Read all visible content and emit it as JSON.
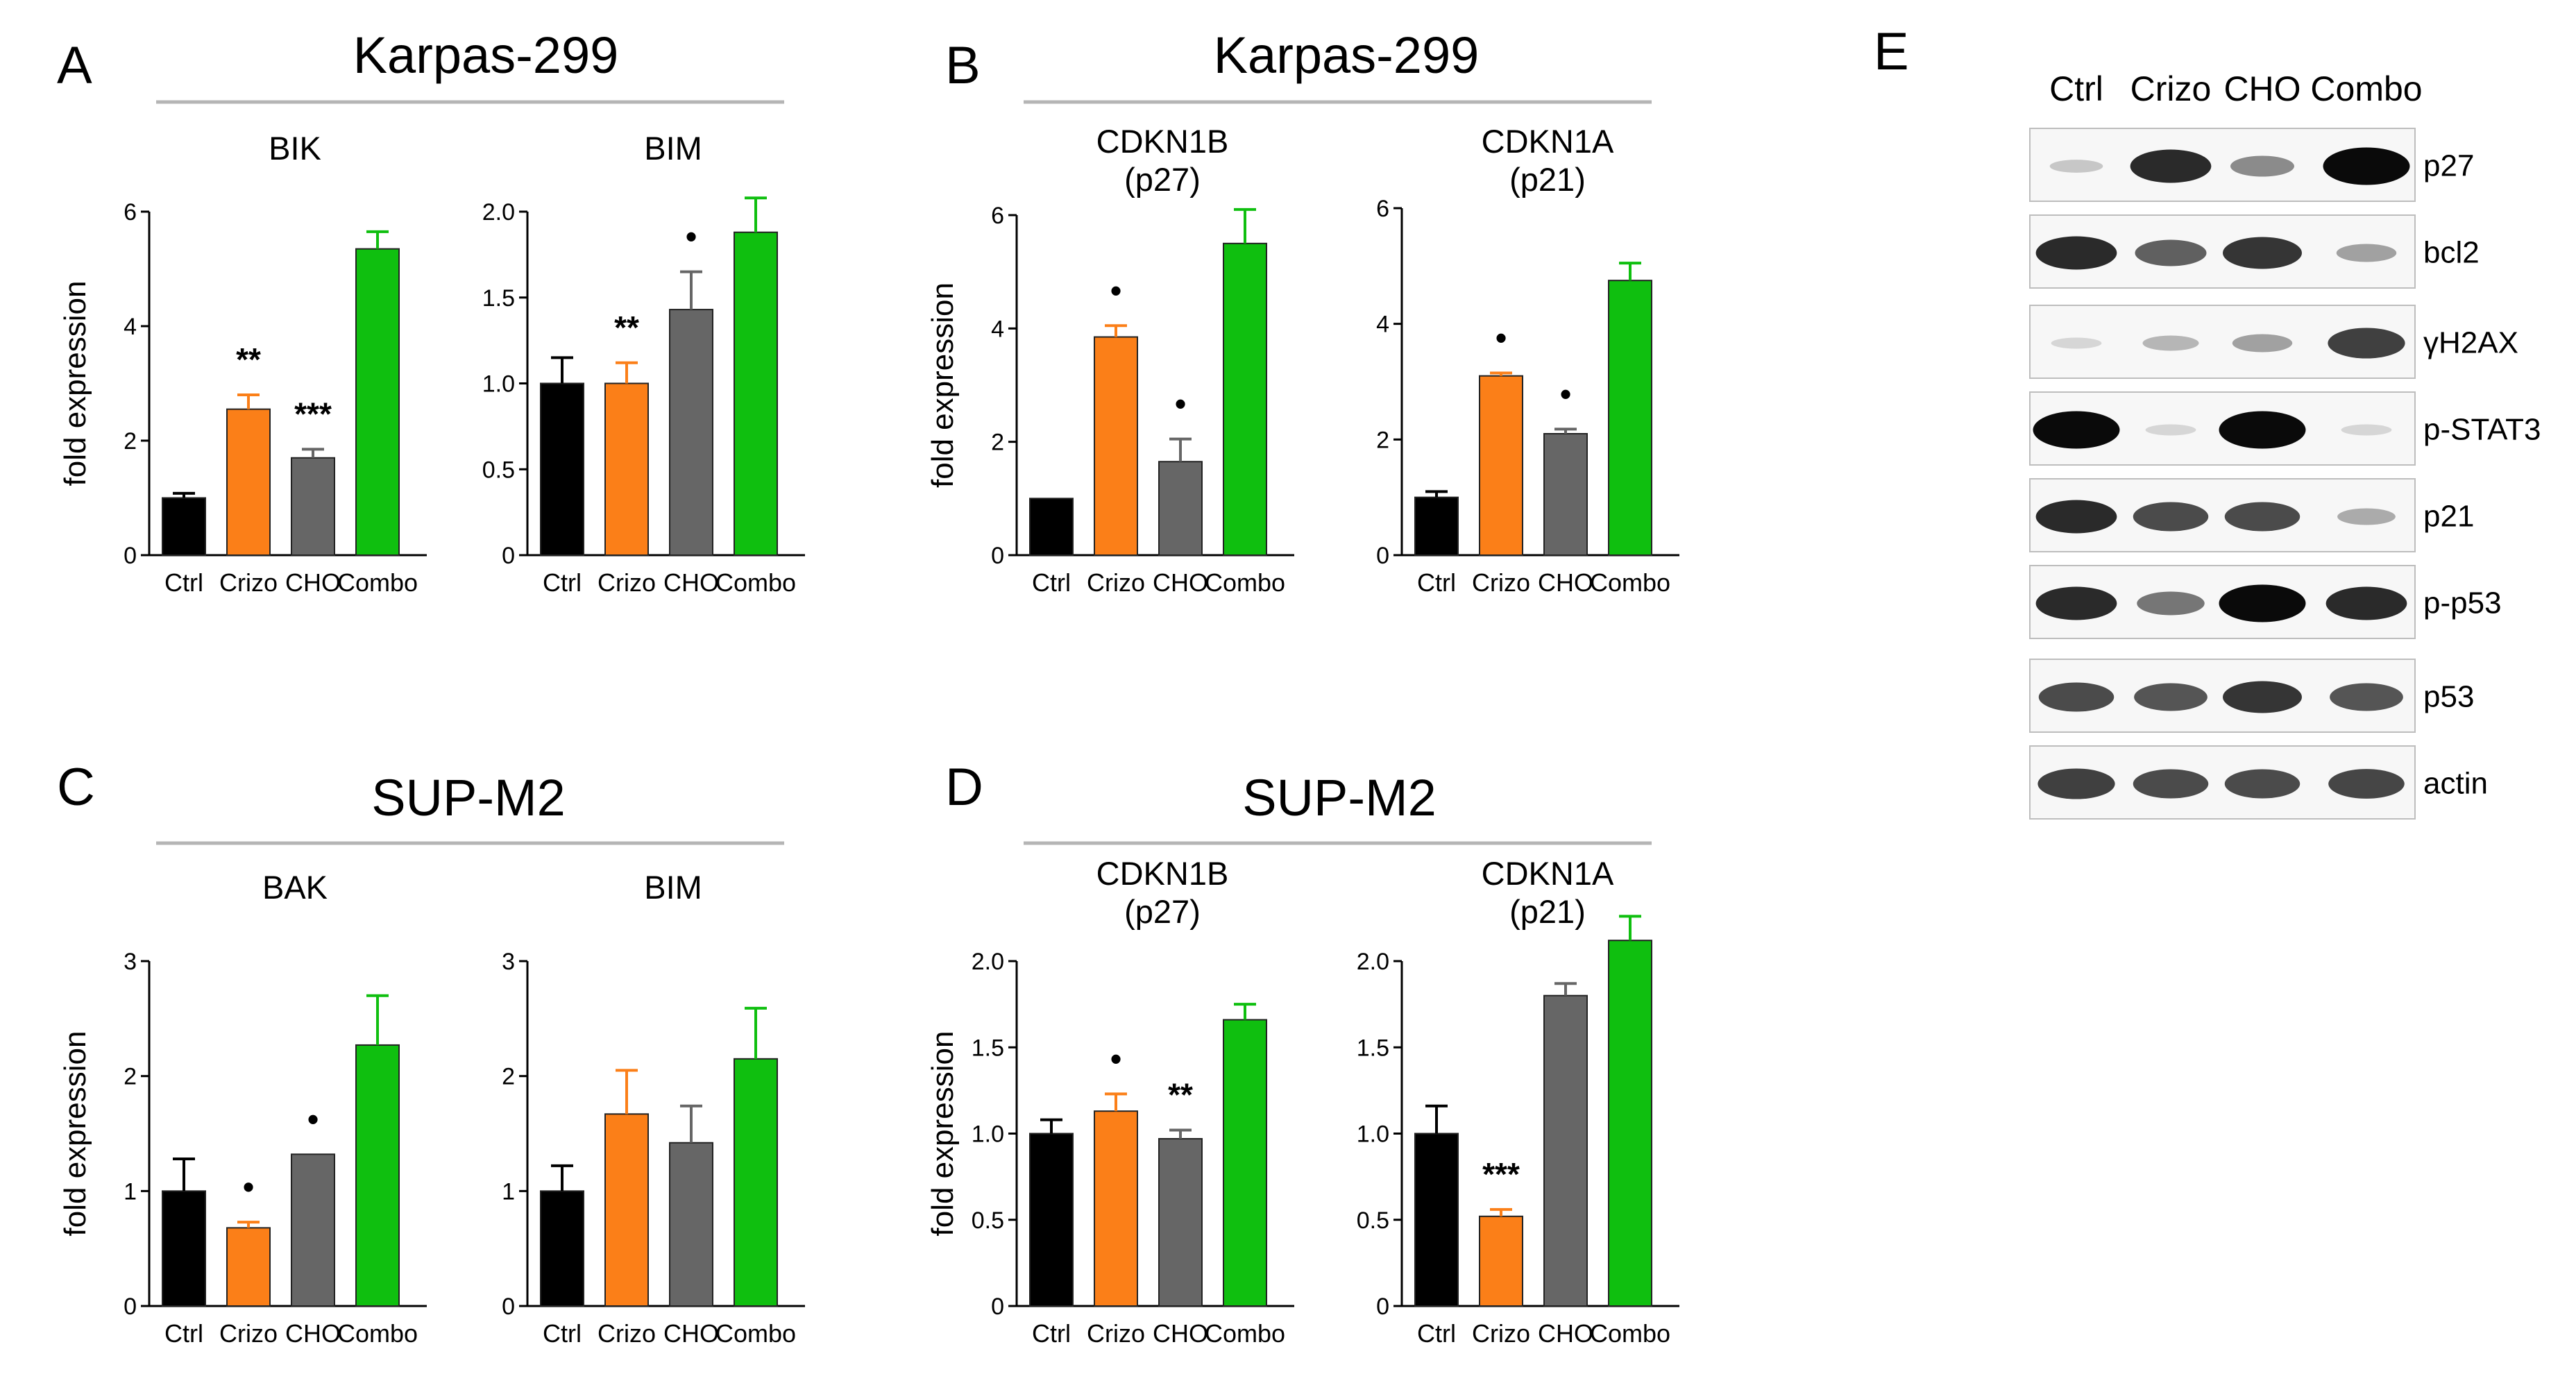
{
  "colors": {
    "Ctrl": "#000000",
    "Crizo": "#fb7f18",
    "CHO": "#666666",
    "Combo": "#0fbf0f"
  },
  "panels": [
    {
      "letter": "A",
      "title": "Karpas-299"
    },
    {
      "letter": "B",
      "title": "Karpas-299"
    },
    {
      "letter": "C",
      "title": "SUP-M2"
    },
    {
      "letter": "D",
      "title": "SUP-M2"
    },
    {
      "letter": "E"
    }
  ],
  "chart_data": [
    {
      "panel": "A",
      "type": "bar",
      "title": [
        "BIK"
      ],
      "ylabel": "fold expression",
      "categories": [
        "Ctrl",
        "Crizo",
        "CHO",
        "Combo"
      ],
      "ylim": [
        0,
        6
      ],
      "yticks": [
        "0",
        "2",
        "4",
        "6"
      ],
      "values": [
        1.0,
        2.55,
        1.7,
        5.35
      ],
      "errors": [
        0.08,
        0.25,
        0.15,
        0.3
      ],
      "significance": [
        "",
        "**",
        "***",
        ""
      ]
    },
    {
      "panel": "A",
      "type": "bar",
      "title": [
        "BIM"
      ],
      "ylabel": "",
      "categories": [
        "Ctrl",
        "Crizo",
        "CHO",
        "Combo"
      ],
      "ylim": [
        0,
        2.0
      ],
      "yticks": [
        "0",
        "0.5",
        "1.0",
        "1.5",
        "2.0"
      ],
      "values": [
        1.0,
        1.0,
        1.43,
        1.88
      ],
      "errors": [
        0.15,
        0.12,
        0.22,
        0.2
      ],
      "significance": [
        "",
        "**",
        "•",
        ""
      ]
    },
    {
      "panel": "B",
      "type": "bar",
      "title": [
        "CDKN1B",
        "(p27)"
      ],
      "ylabel": "fold expression",
      "categories": [
        "Ctrl",
        "Crizo",
        "CHO",
        "Combo"
      ],
      "ylim": [
        0,
        6
      ],
      "yticks": [
        "0",
        "2",
        "4",
        "6"
      ],
      "values": [
        1.0,
        3.85,
        1.65,
        5.5
      ],
      "errors": [
        0.0,
        0.2,
        0.4,
        0.6
      ],
      "significance": [
        "",
        "•",
        "•",
        ""
      ]
    },
    {
      "panel": "B",
      "type": "bar",
      "title": [
        "CDKN1A",
        "(p21)"
      ],
      "ylabel": "",
      "categories": [
        "Ctrl",
        "Crizo",
        "CHO",
        "Combo"
      ],
      "ylim": [
        0,
        6
      ],
      "yticks": [
        "0",
        "2",
        "4",
        "6"
      ],
      "values": [
        1.0,
        3.1,
        2.1,
        4.75
      ],
      "errors": [
        0.1,
        0.05,
        0.08,
        0.3
      ],
      "significance": [
        "",
        "•",
        "•",
        ""
      ]
    },
    {
      "panel": "C",
      "type": "bar",
      "title": [
        "BAK"
      ],
      "ylabel": "fold expression",
      "categories": [
        "Ctrl",
        "Crizo",
        "CHO",
        "Combo"
      ],
      "ylim": [
        0,
        3
      ],
      "yticks": [
        "0",
        "1",
        "2",
        "3"
      ],
      "values": [
        1.0,
        0.68,
        1.32,
        2.27
      ],
      "errors": [
        0.28,
        0.05,
        0.0,
        0.43
      ],
      "significance": [
        "",
        "•",
        "•",
        ""
      ]
    },
    {
      "panel": "C",
      "type": "bar",
      "title": [
        "BIM"
      ],
      "ylabel": "",
      "categories": [
        "Ctrl",
        "Crizo",
        "CHO",
        "Combo"
      ],
      "ylim": [
        0,
        3
      ],
      "yticks": [
        "0",
        "1",
        "2",
        "3"
      ],
      "values": [
        1.0,
        1.67,
        1.42,
        2.15
      ],
      "errors": [
        0.22,
        0.38,
        0.32,
        0.44
      ],
      "significance": [
        "",
        "",
        "",
        ""
      ]
    },
    {
      "panel": "D",
      "type": "bar",
      "title": [
        "CDKN1B",
        "(p27)"
      ],
      "ylabel": "fold expression",
      "categories": [
        "Ctrl",
        "Crizo",
        "CHO",
        "Combo"
      ],
      "ylim": [
        0,
        2.0
      ],
      "yticks": [
        "0",
        "0.5",
        "1.0",
        "1.5",
        "2.0"
      ],
      "values": [
        1.0,
        1.13,
        0.97,
        1.66
      ],
      "errors": [
        0.08,
        0.1,
        0.05,
        0.09
      ],
      "significance": [
        "",
        "•",
        "**",
        ""
      ]
    },
    {
      "panel": "D",
      "type": "bar",
      "title": [
        "CDKN1A",
        "(p21)"
      ],
      "ylabel": "",
      "categories": [
        "Ctrl",
        "Crizo",
        "CHO",
        "Combo"
      ],
      "ylim": [
        0,
        2.0
      ],
      "yticks": [
        "0",
        "0.5",
        "1.0",
        "1.5",
        "2.0"
      ],
      "values": [
        1.0,
        0.52,
        1.8,
        2.12
      ],
      "errors": [
        0.16,
        0.04,
        0.07,
        0.14
      ],
      "significance": [
        "",
        "***",
        "",
        ""
      ]
    }
  ],
  "western_blot": {
    "columns": [
      "Ctrl",
      "Crizo",
      "CHO",
      "Combo"
    ],
    "rows": [
      {
        "label": "p27",
        "bands": [
          0.12,
          0.85,
          0.4,
          1.0
        ]
      },
      {
        "label": "bcl2",
        "bands": [
          0.85,
          0.6,
          0.8,
          0.3
        ]
      },
      {
        "label": "γH2AX",
        "bands": [
          0.05,
          0.2,
          0.3,
          0.75
        ]
      },
      {
        "label": "p-STAT3",
        "bands": [
          1.0,
          0.05,
          1.0,
          0.05
        ]
      },
      {
        "label": "p21",
        "bands": [
          0.85,
          0.7,
          0.7,
          0.25
        ]
      },
      {
        "label": "p-p53",
        "bands": [
          0.85,
          0.5,
          1.0,
          0.85
        ]
      },
      {
        "label": "p53",
        "bands": [
          0.7,
          0.65,
          0.8,
          0.65
        ]
      },
      {
        "label": "actin",
        "bands": [
          0.75,
          0.7,
          0.7,
          0.72
        ]
      }
    ]
  }
}
